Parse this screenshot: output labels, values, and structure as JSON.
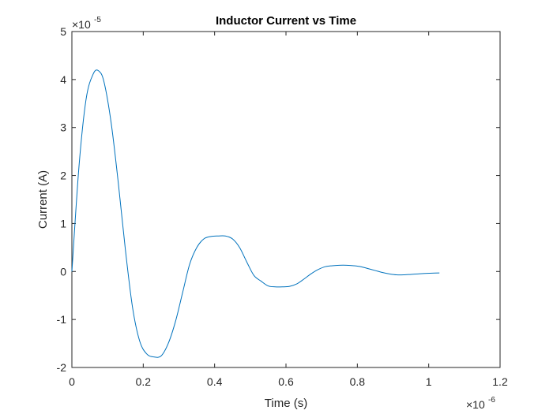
{
  "chart_data": {
    "type": "line",
    "title": "Inductor Current vs Time",
    "xlabel": "Time (s)",
    "ylabel": "Current (A)",
    "x_exponent_label": {
      "base": "×10",
      "power": "-6"
    },
    "y_exponent_label": {
      "base": "×10",
      "power": "-5"
    },
    "xlim": [
      0,
      1.2
    ],
    "ylim": [
      -2,
      5
    ],
    "x_ticks": [
      "0",
      "0.2",
      "0.4",
      "0.6",
      "0.8",
      "1",
      "1.2"
    ],
    "y_ticks": [
      "-2",
      "-1",
      "0",
      "1",
      "2",
      "3",
      "4",
      "5"
    ],
    "grid": false,
    "line_color": "#0072bd",
    "series": [
      {
        "x": [
          0,
          0.02,
          0.04,
          0.06,
          0.075,
          0.09,
          0.11,
          0.13,
          0.15,
          0.17,
          0.19,
          0.21,
          0.23,
          0.25,
          0.27,
          0.29,
          0.31,
          0.33,
          0.35,
          0.37,
          0.39,
          0.41,
          0.43,
          0.45,
          0.47,
          0.49,
          0.51,
          0.53,
          0.55,
          0.57,
          0.59,
          0.61,
          0.63,
          0.65,
          0.67,
          0.69,
          0.71,
          0.73,
          0.75,
          0.77,
          0.79,
          0.81,
          0.83,
          0.85,
          0.87,
          0.89,
          0.91,
          0.93,
          0.95,
          0.97,
          0.99,
          1.01,
          1.03
        ],
        "y": [
          0,
          2.2,
          3.6,
          4.12,
          4.18,
          3.95,
          3.1,
          1.85,
          0.45,
          -0.75,
          -1.45,
          -1.72,
          -1.78,
          -1.76,
          -1.5,
          -1.05,
          -0.45,
          0.15,
          0.5,
          0.68,
          0.73,
          0.74,
          0.74,
          0.68,
          0.5,
          0.2,
          -0.08,
          -0.2,
          -0.3,
          -0.32,
          -0.32,
          -0.31,
          -0.26,
          -0.16,
          -0.05,
          0.04,
          0.1,
          0.12,
          0.13,
          0.13,
          0.12,
          0.1,
          0.06,
          0.02,
          -0.02,
          -0.05,
          -0.07,
          -0.07,
          -0.06,
          -0.05,
          -0.04,
          -0.035,
          -0.03
        ]
      }
    ]
  }
}
